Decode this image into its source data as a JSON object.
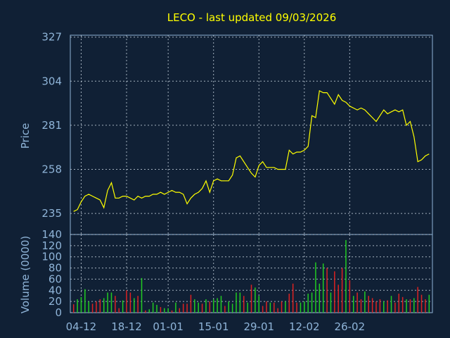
{
  "chart_data": [
    {
      "type": "line",
      "title": "LECO - last updated 09/03/2026",
      "ylabel": "Price",
      "ylim": [
        224,
        328
      ],
      "yticks": [
        327,
        304,
        281,
        258,
        235
      ],
      "x_tick_labels": [
        "04-12",
        "18-12",
        "01-01",
        "15-01",
        "29-01",
        "12-02",
        "26-02"
      ],
      "grid": true,
      "line_color": "#ffff00",
      "series": [
        {
          "values": [
            236,
            237,
            241,
            244,
            245,
            244,
            243,
            242,
            238,
            247,
            251,
            243,
            243,
            244,
            244,
            243,
            242,
            244,
            243,
            244,
            244,
            245,
            245,
            246,
            245,
            246,
            247,
            246,
            246,
            245,
            240,
            243,
            245,
            246,
            248,
            252,
            246,
            252,
            253,
            252,
            252,
            252,
            255,
            264,
            265,
            262,
            259,
            256,
            254,
            260,
            262,
            259,
            259,
            259,
            258,
            258,
            258,
            268,
            266,
            267,
            267,
            268,
            270,
            286,
            285,
            299,
            298,
            298,
            295,
            292,
            297,
            294,
            293,
            291,
            290,
            289,
            290,
            289,
            287,
            285,
            283,
            286,
            289,
            287,
            288,
            289,
            288,
            289,
            281,
            283,
            275,
            262,
            263,
            265,
            266
          ]
        }
      ]
    },
    {
      "type": "bar",
      "ylabel": "Volume (0000)",
      "ylim": [
        0,
        140
      ],
      "yticks": [
        0,
        20,
        40,
        60,
        80,
        100,
        120,
        140
      ],
      "grid": true,
      "up_color": "#22cc22",
      "down_color": "#dd2222",
      "series": [
        {
          "values": [
            15,
            24,
            28,
            42,
            20,
            16,
            20,
            24,
            26,
            36,
            36,
            30,
            8,
            22,
            40,
            36,
            26,
            30,
            62,
            4,
            6,
            18,
            14,
            10,
            8,
            8,
            4,
            18,
            8,
            16,
            16,
            32,
            24,
            18,
            16,
            24,
            20,
            24,
            26,
            30,
            12,
            20,
            16,
            36,
            36,
            30,
            18,
            50,
            45,
            30,
            12,
            20,
            18,
            18,
            8,
            20,
            20,
            34,
            52,
            18,
            18,
            20,
            34,
            36,
            90,
            52,
            88,
            80,
            36,
            74,
            50,
            80,
            130,
            58,
            30,
            36,
            24,
            38,
            30,
            26,
            20,
            24,
            20,
            22,
            30,
            18,
            34,
            28,
            24,
            24,
            26,
            46,
            32,
            24,
            32
          ],
          "colors": [
            "r",
            "g",
            "g",
            "g",
            "g",
            "r",
            "r",
            "r",
            "g",
            "g",
            "g",
            "r",
            "r",
            "g",
            "r",
            "r",
            "g",
            "r",
            "g",
            "r",
            "g",
            "g",
            "g",
            "r",
            "g",
            "g",
            "r",
            "g",
            "r",
            "r",
            "r",
            "r",
            "g",
            "g",
            "r",
            "g",
            "r",
            "g",
            "g",
            "g",
            "r",
            "g",
            "g",
            "g",
            "g",
            "r",
            "g",
            "r",
            "g",
            "g",
            "r",
            "r",
            "g",
            "r",
            "r",
            "r",
            "g",
            "r",
            "r",
            "r",
            "g",
            "g",
            "g",
            "g",
            "g",
            "g",
            "g",
            "r",
            "g",
            "r",
            "r",
            "r",
            "g",
            "r",
            "g",
            "r",
            "r",
            "g",
            "r",
            "r",
            "r",
            "r",
            "g",
            "r",
            "g",
            "r",
            "r",
            "r",
            "g",
            "r",
            "g",
            "r",
            "r",
            "r",
            "g"
          ]
        }
      ]
    }
  ]
}
